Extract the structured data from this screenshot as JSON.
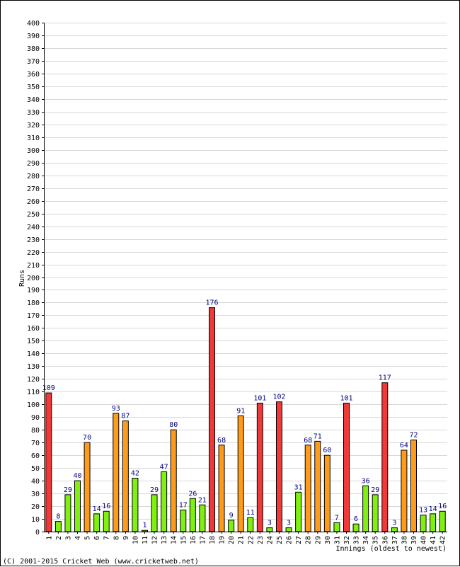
{
  "chart_data": {
    "type": "bar",
    "title": "",
    "xlabel": "Innings (oldest to newest)",
    "ylabel": "Runs",
    "ylim": [
      0,
      400
    ],
    "ytick_step": 10,
    "grid": true,
    "categories": [
      "1",
      "2",
      "3",
      "4",
      "5",
      "6",
      "7",
      "8",
      "9",
      "10",
      "11",
      "12",
      "13",
      "14",
      "15",
      "16",
      "17",
      "18",
      "19",
      "20",
      "21",
      "22",
      "23",
      "24",
      "25",
      "26",
      "27",
      "28",
      "29",
      "30",
      "31",
      "32",
      "33",
      "34",
      "35",
      "36",
      "37",
      "38",
      "39",
      "40",
      "41",
      "42"
    ],
    "values": [
      109,
      8,
      29,
      40,
      70,
      14,
      16,
      93,
      87,
      42,
      1,
      29,
      47,
      80,
      17,
      26,
      21,
      176,
      68,
      9,
      91,
      11,
      101,
      3,
      102,
      3,
      31,
      68,
      71,
      60,
      7,
      101,
      6,
      36,
      29,
      117,
      3,
      64,
      72,
      13,
      14,
      16
    ],
    "value_labels": [
      "109",
      "8",
      "29",
      "40",
      "70",
      "14",
      "16",
      "93",
      "87",
      "42",
      "1",
      "29",
      "47",
      "80",
      "17",
      "26",
      "21",
      "176",
      "68",
      "9",
      "91",
      "11",
      "101",
      "3",
      "102",
      "3",
      "31",
      "68",
      "71",
      "60",
      "7",
      "101",
      "6",
      "36",
      "29",
      "117",
      "3",
      "64",
      "72",
      "13",
      "14",
      "16"
    ],
    "colors": {
      "century": "#f03a3a",
      "fifty": "#ff9b1a",
      "under_fifty": "#80f010",
      "bar_outline": "#000000",
      "grid": "#d8d8d8",
      "label_text": "#000080"
    }
  },
  "footer": {
    "copyright": "(C) 2001-2015 Cricket Web (www.cricketweb.net)"
  }
}
